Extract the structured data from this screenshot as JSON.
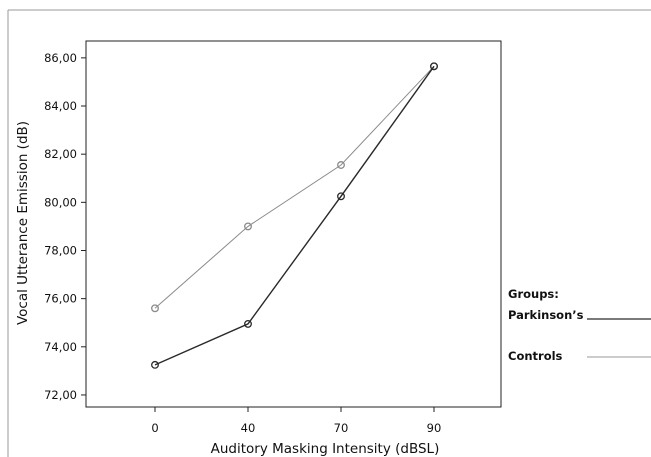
{
  "chart_data": {
    "type": "line",
    "title": "",
    "xlabel": "Auditory Masking Intensity (dBSL)",
    "ylabel": "Vocal Utterance Emission (dB)",
    "categories": [
      "0",
      "40",
      "70",
      "90"
    ],
    "y_ticks": [
      "72,00",
      "74,00",
      "76,00",
      "78,00",
      "80,00",
      "82,00",
      "84,00",
      "86,00"
    ],
    "ylim": [
      71.5,
      86.7
    ],
    "grid": false,
    "legend_title": "Groups:",
    "legend_position": "right",
    "series": [
      {
        "name": "Parkinson’s",
        "values": [
          73.25,
          74.95,
          80.25,
          85.65
        ],
        "color": "#2a2a2a"
      },
      {
        "name": "Controls",
        "values": [
          75.6,
          79.0,
          81.55,
          85.65
        ],
        "color": "#8a8a8a"
      }
    ]
  }
}
